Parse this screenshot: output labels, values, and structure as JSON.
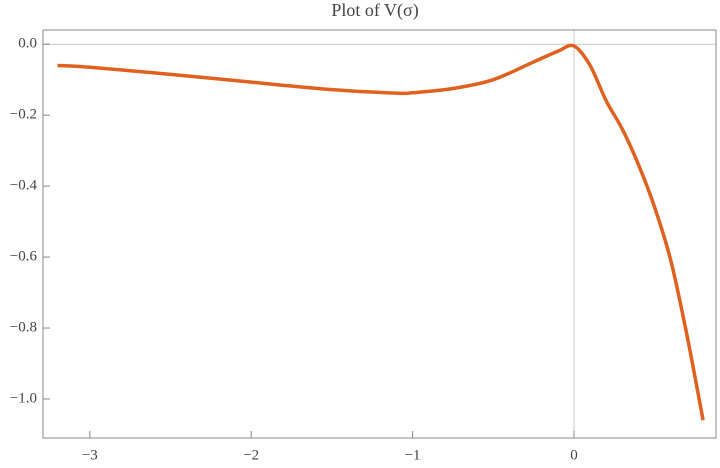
{
  "chart_data": {
    "type": "line",
    "title": "Plot of V(σ)",
    "x": [
      -3.2,
      -3,
      -2.5,
      -2,
      -1.5,
      -1.1,
      -1,
      -0.75,
      -0.5,
      -0.25,
      -0.1,
      0,
      0.1,
      0.2,
      0.3,
      0.4,
      0.5,
      0.6,
      0.7,
      0.8
    ],
    "values": [
      -0.06,
      -0.065,
      -0.085,
      -0.107,
      -0.128,
      -0.138,
      -0.137,
      -0.125,
      -0.1,
      -0.05,
      -0.02,
      -0.005,
      -0.06,
      -0.16,
      -0.24,
      -0.34,
      -0.46,
      -0.61,
      -0.82,
      -1.06
    ],
    "color": "#e0611f",
    "xlim": [
      -3.29,
      0.88
    ],
    "ylim": [
      -1.11,
      0.04
    ],
    "xticks": [
      {
        "value": -3,
        "label": "−3"
      },
      {
        "value": -2,
        "label": "−2"
      },
      {
        "value": -1,
        "label": "−1"
      },
      0
    ],
    "yticks": [
      {
        "value": 0,
        "label": "0.0"
      },
      {
        "value": -0.2,
        "label": "−0.2"
      },
      {
        "value": -0.4,
        "label": "−0.4"
      },
      {
        "value": -0.6,
        "label": "−0.6"
      },
      {
        "value": -0.8,
        "label": "−0.8"
      },
      {
        "value": -1,
        "label": "−1.0"
      }
    ]
  }
}
